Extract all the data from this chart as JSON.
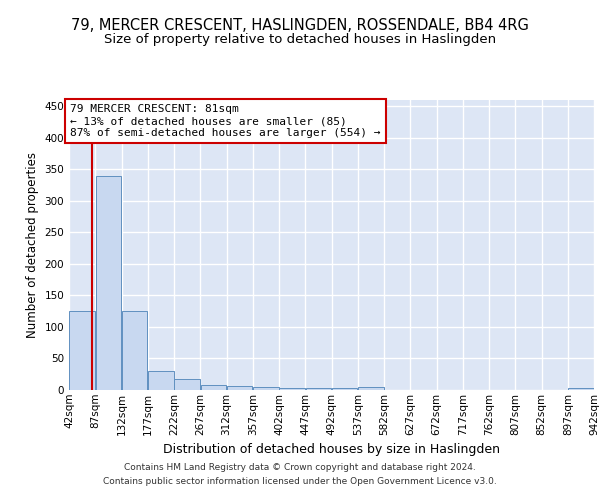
{
  "title1": "79, MERCER CRESCENT, HASLINGDEN, ROSSENDALE, BB4 4RG",
  "title2": "Size of property relative to detached houses in Haslingden",
  "xlabel": "Distribution of detached houses by size in Haslingden",
  "ylabel": "Number of detached properties",
  "footer1": "Contains HM Land Registry data © Crown copyright and database right 2024.",
  "footer2": "Contains public sector information licensed under the Open Government Licence v3.0.",
  "bin_edges": [
    42,
    87,
    132,
    177,
    222,
    267,
    312,
    357,
    402,
    447,
    492,
    537,
    582,
    627,
    672,
    717,
    762,
    807,
    852,
    897,
    942
  ],
  "bar_heights": [
    125,
    340,
    125,
    30,
    18,
    8,
    6,
    5,
    3,
    3,
    3,
    5,
    0,
    0,
    0,
    0,
    0,
    0,
    0,
    3
  ],
  "bar_color": "#c8d8f0",
  "bar_edge_color": "#6090c0",
  "property_size": 81,
  "vline_color": "#cc0000",
  "annotation_line1": "79 MERCER CRESCENT: 81sqm",
  "annotation_line2": "← 13% of detached houses are smaller (85)",
  "annotation_line3": "87% of semi-detached houses are larger (554) →",
  "annotation_box_color": "#cc0000",
  "ylim": [
    0,
    460
  ],
  "yticks": [
    0,
    50,
    100,
    150,
    200,
    250,
    300,
    350,
    400,
    450
  ],
  "background_color": "#dde6f5",
  "grid_color": "#ffffff",
  "title_fontsize": 10.5,
  "subtitle_fontsize": 9.5,
  "tick_fontsize": 7.5,
  "ylabel_fontsize": 8.5,
  "xlabel_fontsize": 9
}
